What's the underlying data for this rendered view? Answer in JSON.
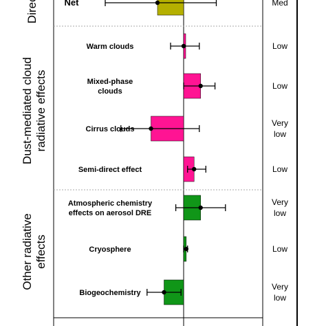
{
  "chart_data": {
    "type": "bar",
    "orientation": "horizontal",
    "title": "",
    "xlabel": "",
    "ylabel": "",
    "xlim": [
      -0.6,
      0.6
    ],
    "groups": [
      {
        "label": "Direct",
        "rows": [
          "Net"
        ]
      },
      {
        "label": "Dust-mediated cloud radiative effects",
        "lines": [
          "Dust-mediated cloud",
          "radiative effects"
        ],
        "rows": [
          "Warm clouds",
          "Mixed-phase clouds",
          "Cirrus clouds",
          "Semi-direct effect"
        ]
      },
      {
        "label": "Other radiative effects",
        "lines": [
          "Other radiative",
          "effects"
        ],
        "rows": [
          "Atmospheric chemistry effects on aerosol DRE",
          "Cryosphere",
          "Biogeochemistry"
        ]
      }
    ],
    "categories": [
      {
        "label": "Net",
        "lines": [
          "Net"
        ],
        "value": -0.2,
        "low": -0.6,
        "high": 0.25,
        "color": "#b5b000",
        "confidence": "Med"
      },
      {
        "label": "Warm clouds",
        "lines": [
          "Warm clouds"
        ],
        "value": 0.0,
        "low": -0.1,
        "high": 0.12,
        "color": "#ff1493",
        "confidence": "Low"
      },
      {
        "label": "Mixed-phase clouds",
        "lines": [
          "Mixed-phase",
          "clouds"
        ],
        "value": 0.13,
        "low": 0.0,
        "high": 0.24,
        "color": "#ff1493",
        "confidence": "Low"
      },
      {
        "label": "Cirrus clouds",
        "lines": [
          "Cirrus clouds"
        ],
        "value": -0.25,
        "low": -0.48,
        "high": 0.12,
        "color": "#ff1493",
        "confidence": "Very low"
      },
      {
        "label": "Semi-direct effect",
        "lines": [
          "Semi-direct effect"
        ],
        "value": 0.08,
        "low": 0.03,
        "high": 0.17,
        "color": "#ff1493",
        "confidence": "Low"
      },
      {
        "label": "Atmospheric chemistry effects on aerosol DRE",
        "lines": [
          "Atmospheric chemistry",
          "effects on aerosol DRE"
        ],
        "value": 0.13,
        "low": -0.06,
        "high": 0.32,
        "color": "#109618",
        "confidence": "Very low"
      },
      {
        "label": "Cryosphere",
        "lines": [
          "Cryosphere"
        ],
        "value": 0.02,
        "low": 0.0,
        "high": 0.03,
        "color": "#109618",
        "confidence": "Low"
      },
      {
        "label": "Biogeochemistry",
        "lines": [
          "Biogeochemistry"
        ],
        "value": -0.15,
        "low": -0.28,
        "high": -0.02,
        "color": "#109618",
        "confidence": "Very low"
      }
    ],
    "confidence_lines": {
      "Med": [
        "Med"
      ],
      "Low": [
        "Low"
      ],
      "Very low": [
        "Very",
        "low"
      ]
    }
  }
}
